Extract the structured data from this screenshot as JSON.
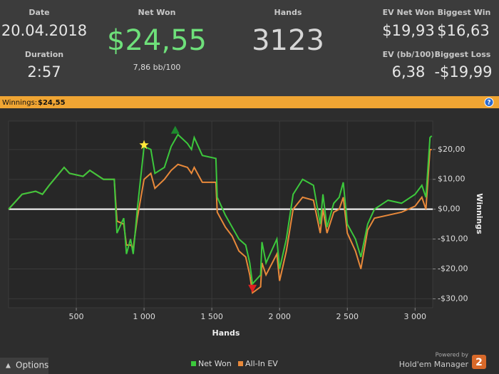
{
  "header": {
    "date": {
      "label": "Date",
      "value": "20.04.2018"
    },
    "duration": {
      "label": "Duration",
      "value": "2:57"
    },
    "net_won": {
      "label": "Net Won",
      "value": "$24,55",
      "sub": "7,86 bb/100"
    },
    "hands": {
      "label": "Hands",
      "value": "3123"
    },
    "ev_net_won": {
      "label": "EV Net Won",
      "value": "$19,93"
    },
    "biggest_win": {
      "label": "Biggest Win",
      "value": "$16,63"
    },
    "ev_bb100": {
      "label": "EV (bb/100)",
      "value": "6,38"
    },
    "biggest_loss": {
      "label": "Biggest Loss",
      "value": "-$19,99"
    }
  },
  "banner": {
    "label": "Winnings:",
    "value": "$24,55",
    "help": "?"
  },
  "footer": {
    "options": "Options",
    "powered_by": "Powered by",
    "brand": "Hold'em Manager",
    "brand_version": "2"
  },
  "chart_data": {
    "type": "line",
    "xlabel": "Hands",
    "ylabel": "Winnings",
    "x": [
      0,
      100,
      200,
      250,
      300,
      410,
      450,
      550,
      600,
      700,
      780,
      800,
      850,
      870,
      900,
      920,
      950,
      1000,
      1050,
      1080,
      1150,
      1200,
      1250,
      1320,
      1350,
      1370,
      1430,
      1530,
      1540,
      1600,
      1650,
      1700,
      1750,
      1780,
      1800,
      1860,
      1870,
      1900,
      1980,
      2000,
      2050,
      2100,
      2170,
      2250,
      2300,
      2320,
      2350,
      2400,
      2440,
      2470,
      2500,
      2560,
      2600,
      2650,
      2700,
      2800,
      2900,
      3000,
      3050,
      3080,
      3110,
      3123
    ],
    "series": [
      {
        "name": "Net Won",
        "color": "#3cc83c",
        "values": [
          0,
          5,
          6,
          5,
          8,
          14,
          12,
          11,
          13,
          10,
          10,
          -8,
          -3,
          -15,
          -10,
          -15,
          0,
          21,
          20,
          12,
          14,
          21,
          25,
          22,
          20,
          24,
          18,
          17,
          4,
          -2,
          -6,
          -10,
          -12,
          -18,
          -25,
          -22,
          -11,
          -18,
          -10,
          -20,
          -10,
          5,
          10,
          8,
          -5,
          5,
          -6,
          2,
          4,
          9,
          -5,
          -10,
          -16,
          -5,
          0,
          3,
          2,
          5,
          8,
          4,
          24,
          24.55
        ]
      },
      {
        "name": "All-In EV",
        "color": "#e8893a",
        "values": [
          0,
          5,
          6,
          5,
          8,
          14,
          12,
          11,
          13,
          10,
          10,
          -4,
          -5,
          -12,
          -12,
          -13,
          -3,
          10,
          12,
          7,
          10,
          13,
          15,
          14,
          12,
          14,
          9,
          9,
          -1,
          -6,
          -9,
          -14,
          -16,
          -22,
          -28,
          -26,
          -18,
          -22,
          -15,
          -24,
          -14,
          0,
          4,
          3,
          -8,
          0,
          -8,
          -1,
          0,
          4,
          -8,
          -14,
          -20,
          -7,
          -3,
          -2,
          -1,
          1,
          4,
          0,
          20,
          19.93
        ]
      }
    ],
    "markers": [
      {
        "x": 1000,
        "y": 21.5,
        "shape": "star",
        "color": "#ffe83a"
      },
      {
        "x": 1230,
        "y": 26.5,
        "shape": "triangle-up",
        "color": "#1e8a2e"
      },
      {
        "x": 1800,
        "y": -26.5,
        "shape": "triangle-down",
        "color": "#e02020"
      }
    ],
    "xlim": [
      0,
      3130
    ],
    "ylim": [
      -33,
      29.5
    ],
    "xticks": [
      500,
      {
        "value": 1000,
        "label": "1 000"
      },
      {
        "value": 1500,
        "label": "1 500"
      },
      {
        "value": 2000,
        "label": "2 000"
      },
      {
        "value": 2500,
        "label": "2 500"
      },
      {
        "value": 3000,
        "label": "3 000"
      }
    ],
    "yticks": [
      {
        "value": -30,
        "label": "-$30,00"
      },
      {
        "value": -20,
        "label": "-$20,00"
      },
      {
        "value": -10,
        "label": "-$10,00"
      },
      {
        "value": 0,
        "label": "$0,00"
      },
      {
        "value": 10,
        "label": "$10,00"
      },
      {
        "value": 20,
        "label": "$20,00"
      }
    ],
    "grid": true,
    "zero_line_color": "#ffffff"
  }
}
